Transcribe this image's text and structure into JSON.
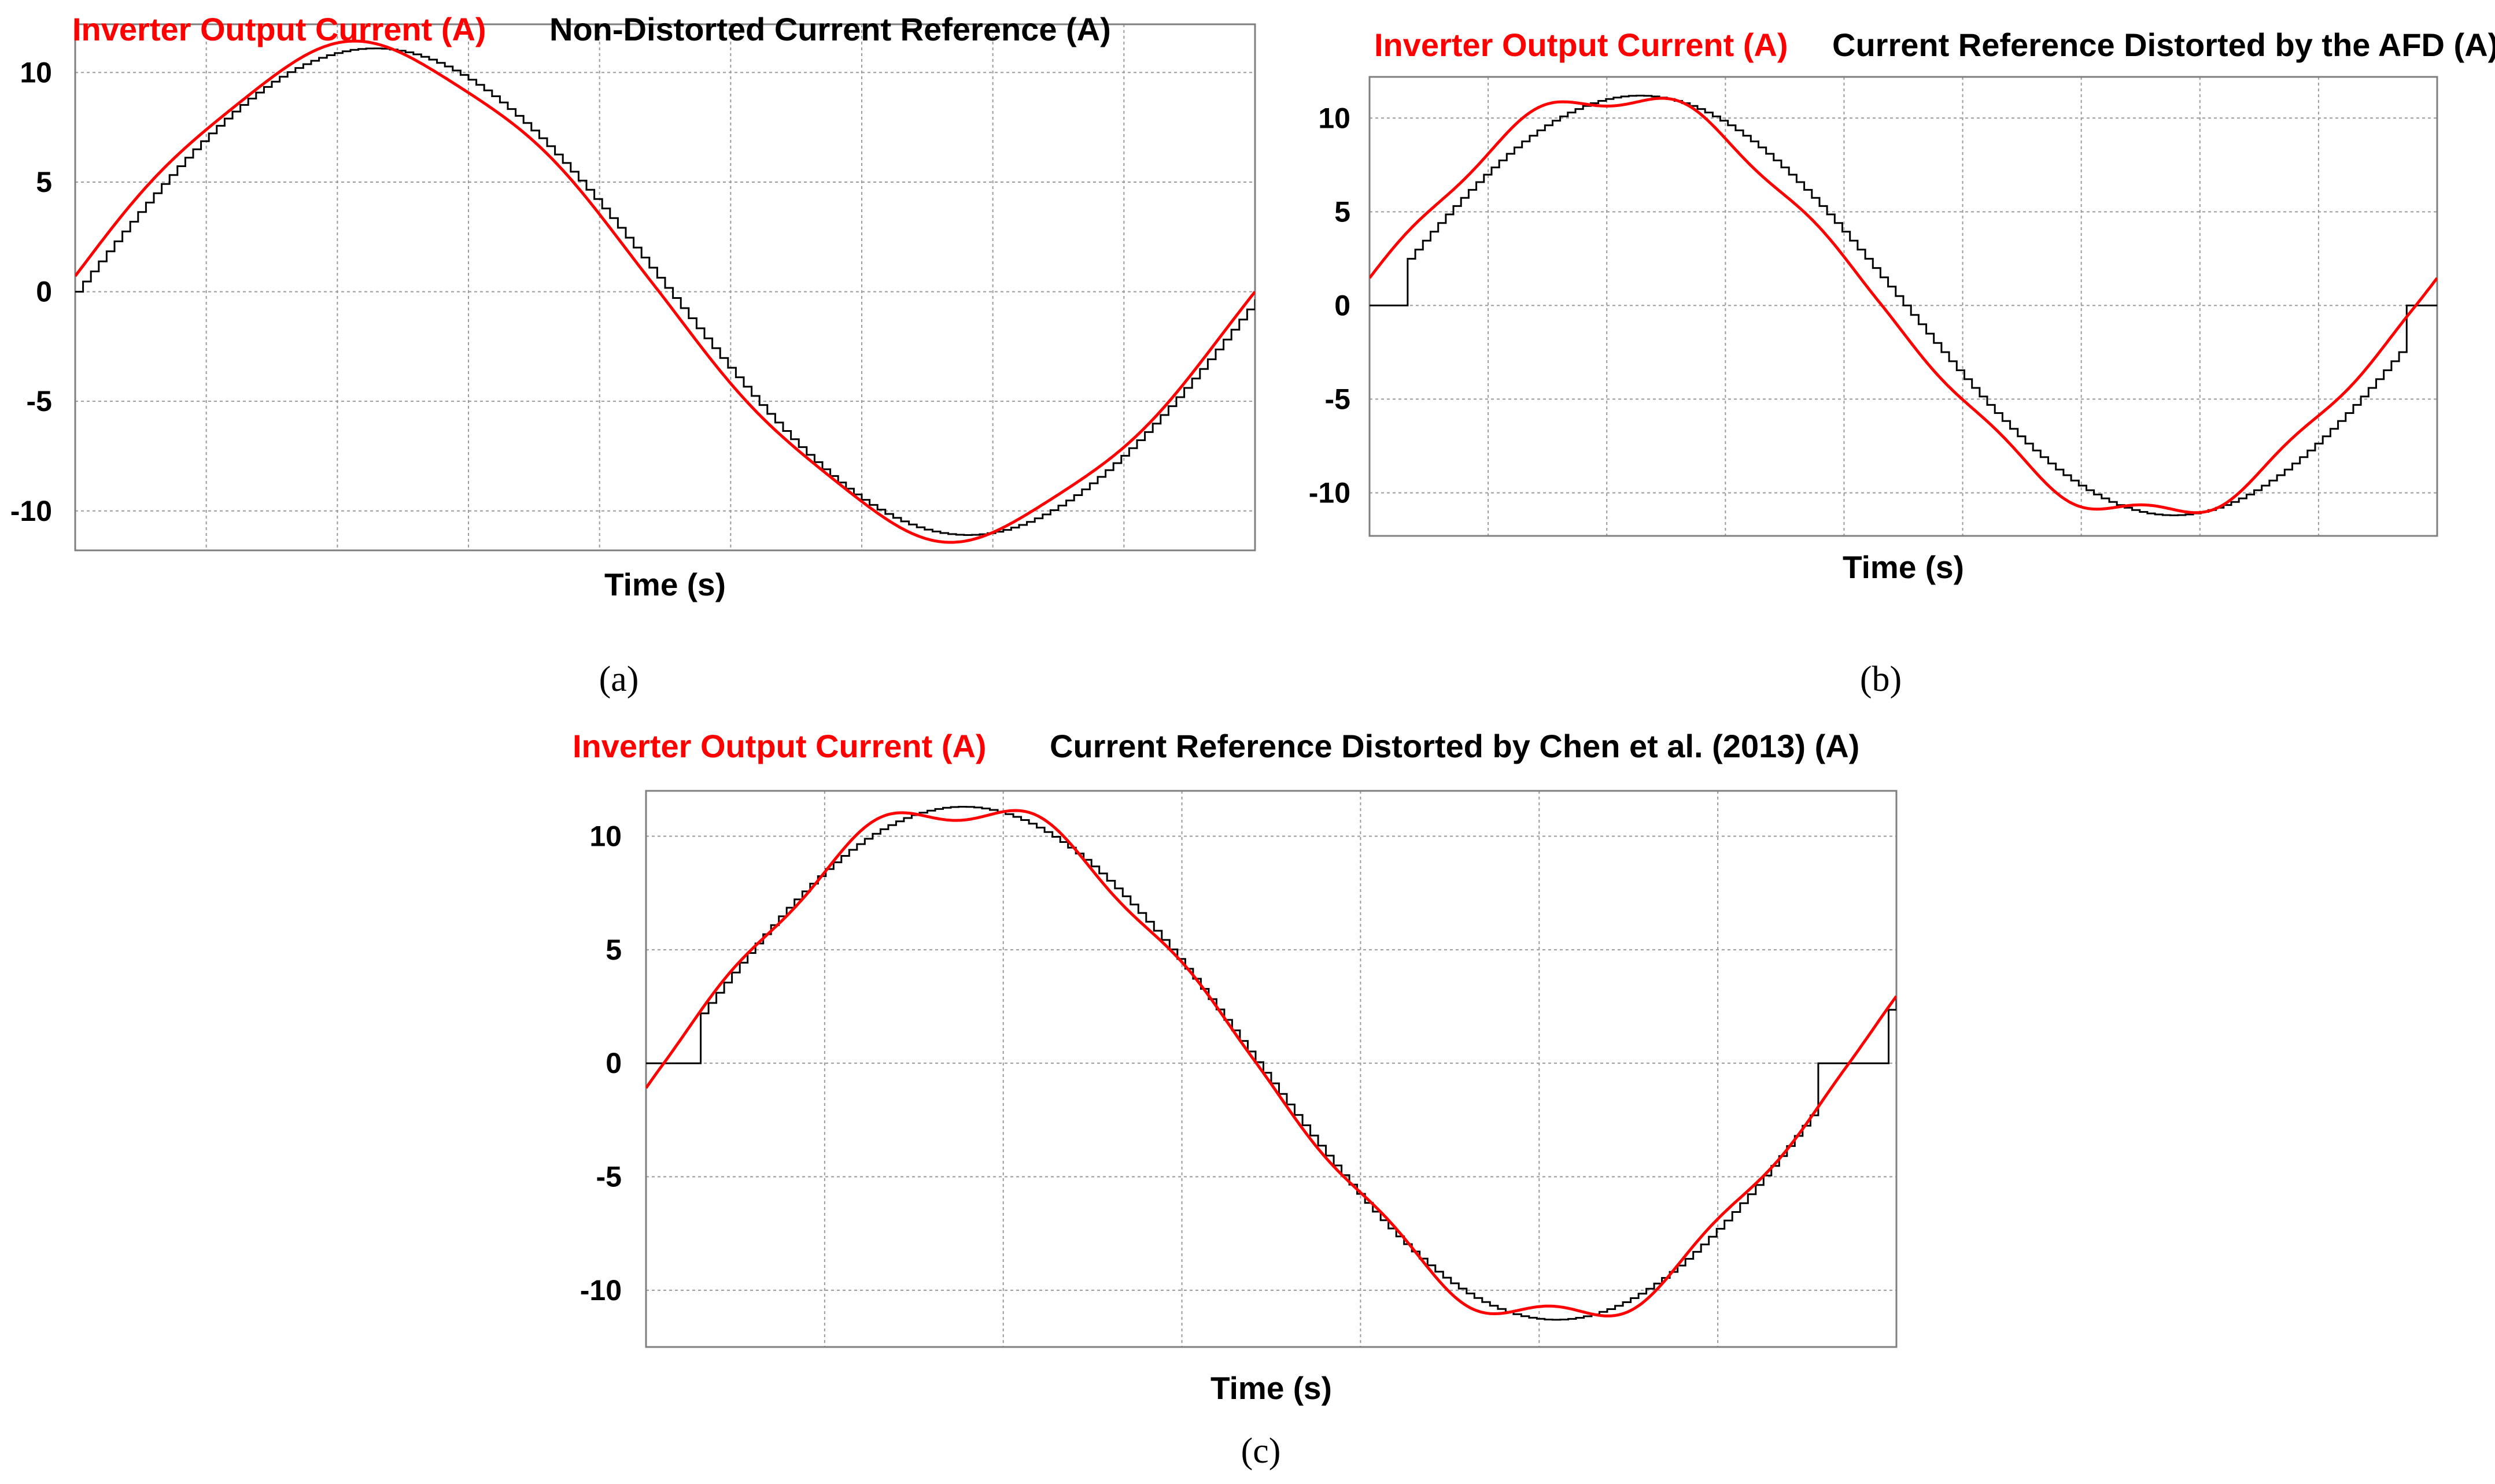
{
  "colors": {
    "output": "#ff0000",
    "reference": "#000000",
    "grid": "#9a9a9a",
    "frame": "#7f7f7f"
  },
  "chart_data": [
    {
      "panel": "(a)",
      "type": "line",
      "xlabel": "Time (s)",
      "ylabel": "",
      "ylim": [
        -11.8,
        12.2
      ],
      "yticks": [
        10,
        5,
        0,
        -5,
        -10
      ],
      "ytick_labels": [
        "10",
        "5",
        "0",
        "-5",
        "-10"
      ],
      "grid": true,
      "legend_position": "top",
      "series": [
        {
          "name": "Inverter Output Current (A)",
          "style": "smooth",
          "amplitude": 11.1,
          "phase_start": 0.01,
          "phase_end": 1.0,
          "deadzone": 0,
          "ripple": [
            {
              "amp": 0.35,
              "harmonic": 5,
              "shift": 0.4
            }
          ]
        },
        {
          "name": "Non-Distorted Current Reference (A)",
          "style": "staircase",
          "amplitude": 11.1,
          "phase_start": 0.0,
          "phase_end": 0.995,
          "steps": 150,
          "deadzone": 0
        }
      ]
    },
    {
      "panel": "(b)",
      "type": "line",
      "xlabel": "Time (s)",
      "ylabel": "",
      "ylim": [
        -12.3,
        12.2
      ],
      "yticks": [
        10,
        5,
        0,
        -5,
        -10
      ],
      "ytick_labels": [
        "10",
        "5",
        "0",
        "-5",
        "-10"
      ],
      "grid": true,
      "legend_position": "top",
      "series": [
        {
          "name": "Inverter Output Current (A)",
          "style": "smooth",
          "amplitude": 11.2,
          "phase_start": 0.02,
          "phase_end": 1.02,
          "deadzone": 0,
          "ripple": [
            {
              "amp": 0.55,
              "harmonic": 7,
              "shift": 0.2
            }
          ]
        },
        {
          "name": "Current Reference Distorted by the AFD (A)",
          "style": "staircase",
          "amplitude": 11.2,
          "phase_start": 0.0,
          "phase_end": 1.0,
          "steps": 140,
          "deadzone": 0.03
        }
      ]
    },
    {
      "panel": "(c)",
      "type": "line",
      "xlabel": "Time (s)",
      "ylabel": "",
      "ylim": [
        -12.5,
        12.0
      ],
      "yticks": [
        10,
        5,
        0,
        -5,
        -10
      ],
      "ytick_labels": [
        "10",
        "5",
        "0",
        "-5",
        "-10"
      ],
      "grid": true,
      "legend_position": "top",
      "series": [
        {
          "name": "Inverter Output Current (A)",
          "style": "smooth",
          "amplitude": 11.3,
          "phase_start": -0.015,
          "phase_end": 1.04,
          "deadzone": 0,
          "ripple": [
            {
              "amp": 0.6,
              "harmonic": 7,
              "shift": 0.1
            }
          ]
        },
        {
          "name": "Current Reference Distorted by Chen et al. (2013) (A)",
          "style": "staircase",
          "amplitude": 11.3,
          "phase_start": -0.015,
          "phase_end": 1.04,
          "steps": 160,
          "deadzone": 0.03
        }
      ]
    }
  ]
}
